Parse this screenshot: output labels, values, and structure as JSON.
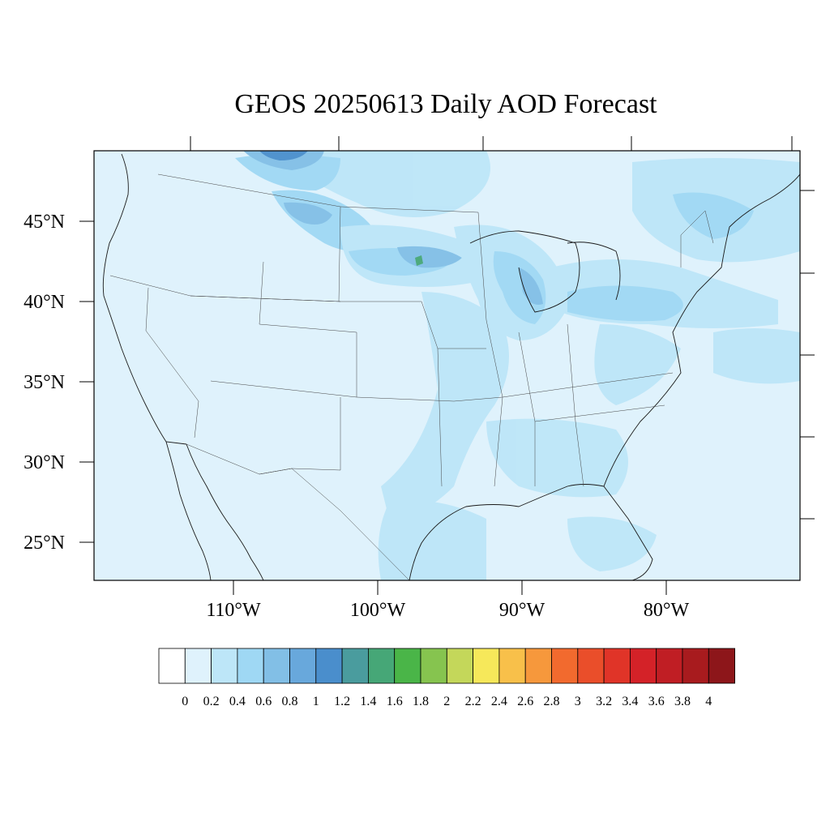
{
  "title": "GEOS 20250613 Daily AOD Forecast",
  "map": {
    "lat_labels": [
      "45°N",
      "40°N",
      "35°N",
      "30°N",
      "25°N"
    ],
    "lon_labels": [
      "110°W",
      "100°W",
      "90°W",
      "80°W"
    ],
    "background_color": "#dff2fc"
  },
  "colorbar": {
    "labels": [
      "0",
      "0.2",
      "0.4",
      "0.6",
      "0.8",
      "1",
      "1.2",
      "1.4",
      "1.6",
      "1.8",
      "2",
      "2.2",
      "2.4",
      "2.6",
      "2.8",
      "3",
      "3.2",
      "3.4",
      "3.6",
      "3.8",
      "4"
    ],
    "colors": [
      "#ffffff",
      "#dff2fc",
      "#bde6f8",
      "#9fd8f4",
      "#82bfe6",
      "#68a8dc",
      "#4a8ecc",
      "#4a9c9e",
      "#46a777",
      "#4ab548",
      "#86c44f",
      "#c4d75a",
      "#f6e85a",
      "#f8c04a",
      "#f6983c",
      "#f26a2e",
      "#ea4e2a",
      "#e03428",
      "#d42228",
      "#c01e24",
      "#a81b1e",
      "#8d161a"
    ]
  }
}
